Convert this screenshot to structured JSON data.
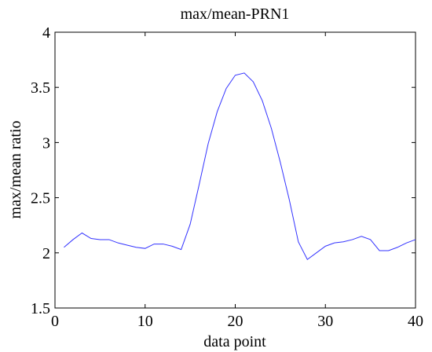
{
  "chart_data": {
    "type": "line",
    "title": "max/mean-PRN1",
    "xlabel": "data point",
    "ylabel": "max/mean ratio",
    "xlim": [
      0,
      40
    ],
    "ylim": [
      1.5,
      4
    ],
    "xticks": [
      0,
      10,
      20,
      30,
      40
    ],
    "yticks": [
      1.5,
      2,
      2.5,
      3,
      3.5,
      4
    ],
    "xtick_labels": [
      "0",
      "10",
      "20",
      "30",
      "40"
    ],
    "ytick_labels": [
      "1.5",
      "2",
      "2.5",
      "3",
      "3.5",
      "4"
    ],
    "grid": false,
    "line_color": "#3333ff",
    "x": [
      1,
      2,
      3,
      4,
      5,
      6,
      7,
      8,
      9,
      10,
      11,
      12,
      13,
      14,
      15,
      16,
      17,
      18,
      19,
      20,
      21,
      22,
      23,
      24,
      25,
      26,
      27,
      28,
      29,
      30,
      31,
      32,
      33,
      34,
      35,
      36,
      37,
      38,
      39,
      40
    ],
    "series": [
      {
        "values": [
          2.05,
          2.12,
          2.18,
          2.13,
          2.12,
          2.12,
          2.09,
          2.07,
          2.05,
          2.04,
          2.08,
          2.08,
          2.06,
          2.03,
          2.26,
          2.62,
          2.99,
          3.28,
          3.49,
          3.61,
          3.63,
          3.55,
          3.38,
          3.13,
          2.82,
          2.48,
          2.1,
          1.94,
          2.0,
          2.06,
          2.09,
          2.1,
          2.12,
          2.15,
          2.12,
          2.02,
          2.02,
          2.05,
          2.09,
          2.12
        ]
      }
    ]
  }
}
